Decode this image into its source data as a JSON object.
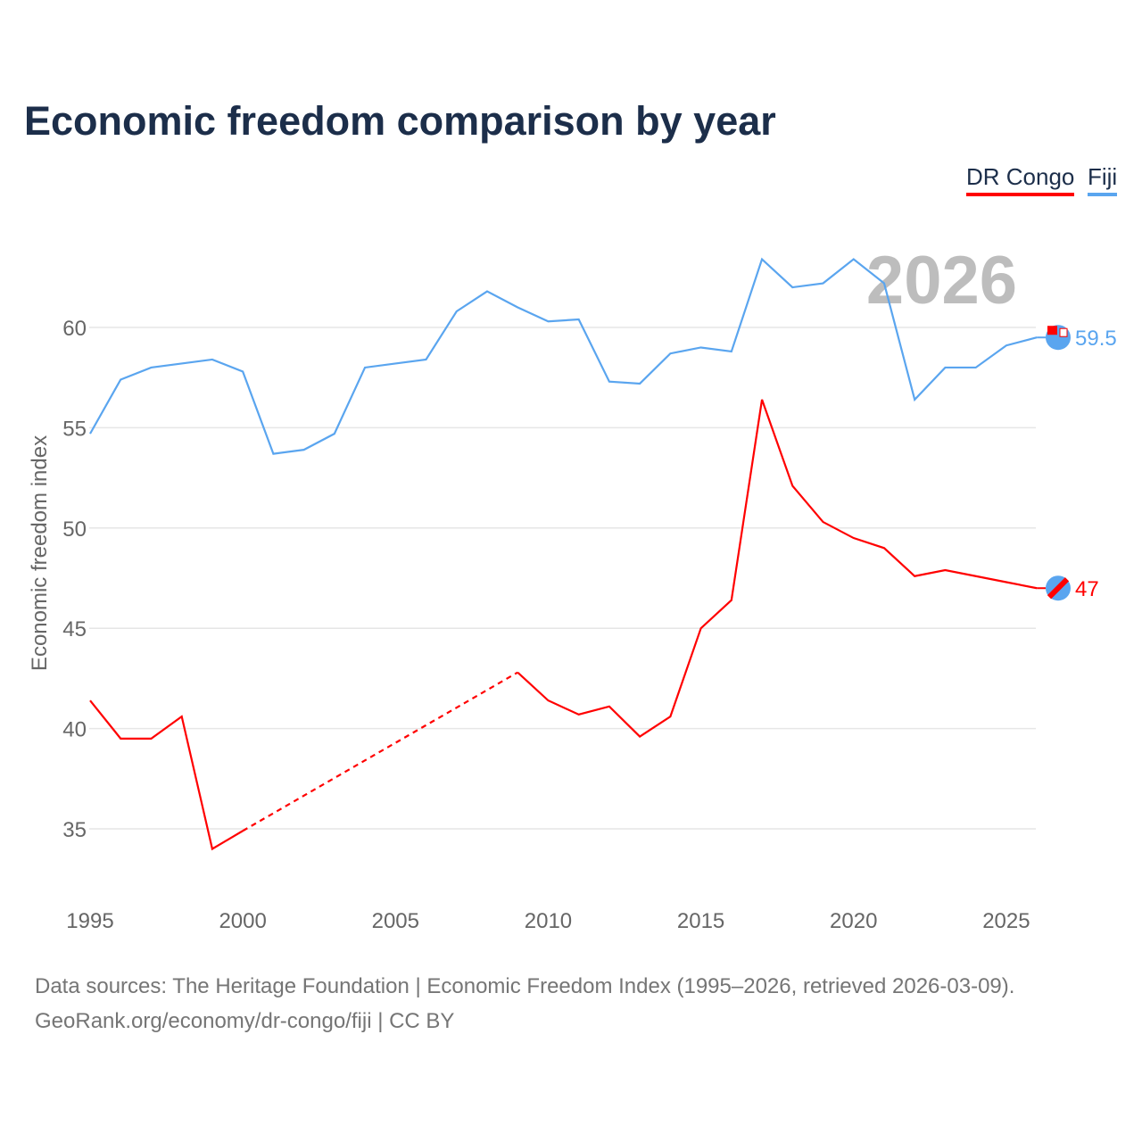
{
  "chart_data": {
    "type": "line",
    "title": "Economic freedom comparison by year",
    "xlabel": "",
    "ylabel": "Economic freedom index",
    "xlim": [
      1995,
      2026
    ],
    "ylim": [
      32.5,
      64.5
    ],
    "xticks": [
      1995,
      2000,
      2005,
      2010,
      2015,
      2020,
      2025
    ],
    "yticks": [
      35,
      40,
      45,
      50,
      55,
      60
    ],
    "grid": true,
    "legend_placement": "top-right",
    "year_label": "2026",
    "x": [
      1995,
      1996,
      1997,
      1998,
      1999,
      2000,
      2001,
      2002,
      2003,
      2004,
      2005,
      2006,
      2007,
      2008,
      2009,
      2010,
      2011,
      2012,
      2013,
      2014,
      2015,
      2016,
      2017,
      2018,
      2019,
      2020,
      2021,
      2022,
      2023,
      2024,
      2025,
      2026
    ],
    "series": [
      {
        "name": "DR Congo",
        "color": "#ff0000",
        "end_label": "47",
        "values": [
          41.4,
          39.5,
          39.5,
          40.6,
          34.0,
          34.9,
          null,
          null,
          null,
          null,
          null,
          null,
          null,
          null,
          42.8,
          41.4,
          40.7,
          41.1,
          39.6,
          40.6,
          45.0,
          46.4,
          56.4,
          52.1,
          50.3,
          49.5,
          49.0,
          47.6,
          47.9,
          47.6,
          47.3,
          47.0
        ]
      },
      {
        "name": "Fiji",
        "color": "#5aa5ef",
        "end_label": "59.5",
        "values": [
          54.7,
          57.4,
          58.0,
          58.2,
          58.4,
          57.8,
          53.7,
          53.9,
          54.7,
          58.0,
          58.2,
          58.4,
          60.8,
          61.8,
          61.0,
          60.3,
          60.4,
          57.3,
          57.2,
          58.7,
          59.0,
          58.8,
          63.4,
          62.0,
          62.2,
          63.4,
          62.2,
          56.4,
          58.0,
          58.0,
          59.1,
          59.5
        ]
      }
    ]
  },
  "footer": {
    "line1": "Data sources: The Heritage Foundation | Economic Freedom Index (1995–2026, retrieved 2026-03-09).",
    "line2": "GeoRank.org/economy/dr-congo/fiji | CC BY"
  }
}
